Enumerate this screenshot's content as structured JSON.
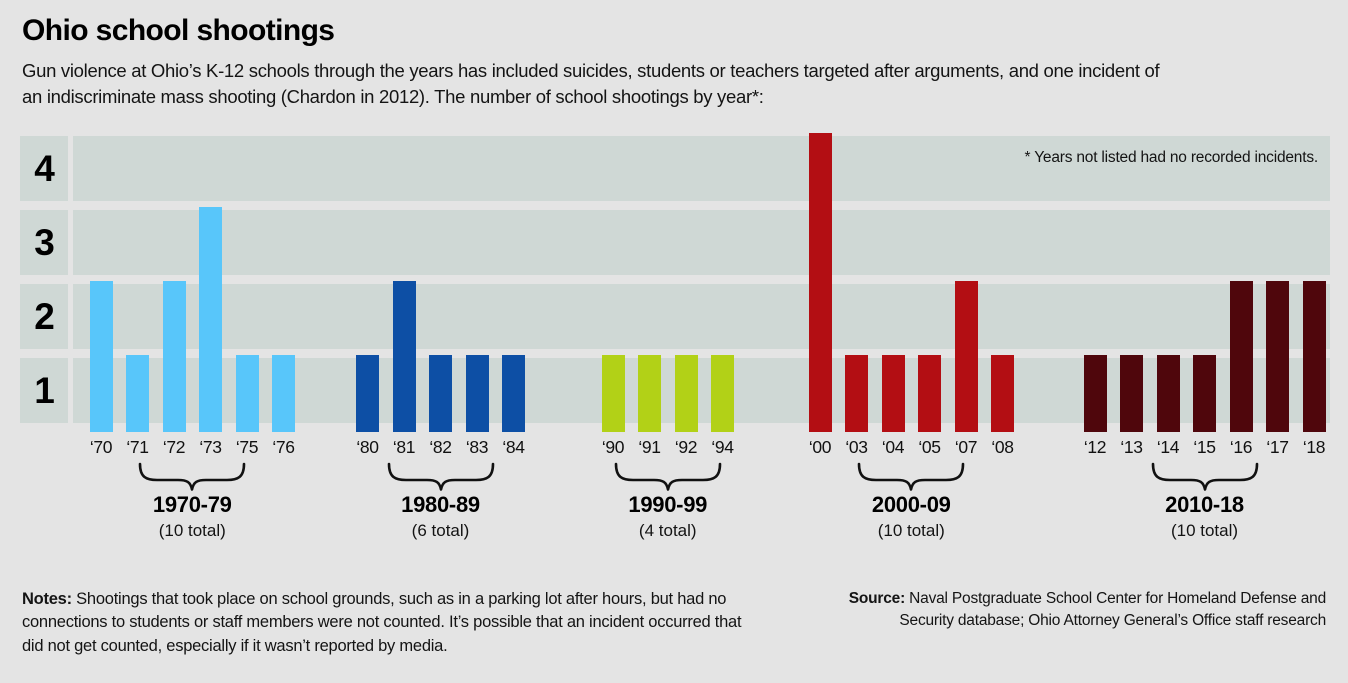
{
  "header": {
    "title": "Ohio school shootings",
    "subtitle": "Gun violence at Ohio’s K-12 schools through the years has included suicides, students or teachers targeted after arguments, and one incident of an indiscriminate mass shooting (Chardon in 2012). The number of school shootings by year*:"
  },
  "chart_data": {
    "type": "bar",
    "title": "The number of school shootings by year",
    "xlabel": "",
    "ylabel": "",
    "ylim": [
      0,
      4
    ],
    "y_axis_labels": [
      "4",
      "3",
      "2",
      "1"
    ],
    "grid": "horizontal shaded bands, one per integer value",
    "annotation": "* Years not listed had no recorded incidents.",
    "groups": [
      {
        "label": "1970-79",
        "total": "(10 total)",
        "color": "#58c6fa",
        "years": [
          "‘70",
          "‘71",
          "‘72",
          "‘73",
          "‘75",
          "‘76"
        ],
        "values": [
          2,
          1,
          2,
          3,
          1,
          1
        ]
      },
      {
        "label": "1980-89",
        "total": "(6 total)",
        "color": "#0d4fa5",
        "years": [
          "‘80",
          "‘81",
          "‘82",
          "‘83",
          "‘84"
        ],
        "values": [
          1,
          2,
          1,
          1,
          1
        ]
      },
      {
        "label": "1990-99",
        "total": "(4 total)",
        "color": "#b2d117",
        "years": [
          "‘90",
          "‘91",
          "‘92",
          "‘94"
        ],
        "values": [
          1,
          1,
          1,
          1
        ]
      },
      {
        "label": "2000-09",
        "total": "(10 total)",
        "color": "#b30e13",
        "years": [
          "‘00",
          "‘03",
          "‘04",
          "‘05",
          "‘07",
          "‘08"
        ],
        "values": [
          4,
          1,
          1,
          1,
          2,
          1
        ]
      },
      {
        "label": "2010-18",
        "total": "(10 total)",
        "color": "#4f060c",
        "years": [
          "‘12",
          "‘13",
          "‘14",
          "‘15",
          "‘16",
          "‘17",
          "‘18"
        ],
        "values": [
          1,
          1,
          1,
          1,
          2,
          2,
          2
        ]
      }
    ]
  },
  "footer": {
    "notes_label": "Notes:",
    "notes_text": " Shootings that took place on school grounds, such as in a parking lot after hours, but had no connections to students or staff members were not counted. It’s possible that an incident occurred that did not get counted, especially if it wasn’t reported by media.",
    "source_label": "Source:",
    "source_text": " Naval Postgraduate School Center for Homeland Defense and Security database; Ohio Attorney General’s Office staff research"
  },
  "colors": {
    "background": "#e4e4e4",
    "band": "#cfd8d5",
    "text": "#111111"
  }
}
